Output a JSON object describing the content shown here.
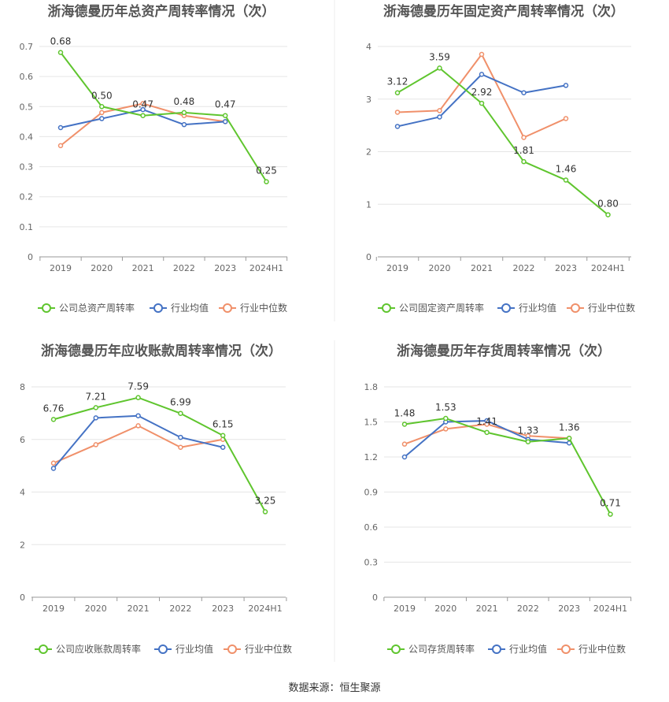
{
  "source": "数据来源：恒生聚源",
  "legend_swatch_color_note": "",
  "chart_data": [
    {
      "type": "line",
      "title": "浙海德曼历年总资产周转率情况（次）",
      "categories": [
        "2019",
        "2020",
        "2021",
        "2022",
        "2023",
        "2024H1"
      ],
      "ylim": [
        0,
        0.7
      ],
      "yticks": [
        "0",
        "0.1",
        "0.2",
        "0.3",
        "0.4",
        "0.5",
        "0.6",
        "0.7"
      ],
      "grid": true,
      "legend_position": "bottom",
      "series": [
        {
          "name": "公司总资产周转率",
          "color": "#5fc52e",
          "values": [
            0.68,
            0.5,
            0.47,
            0.48,
            0.47,
            0.25
          ],
          "labels": [
            "0.68",
            "0.50",
            "0.47",
            "0.48",
            "0.47",
            "0.25"
          ]
        },
        {
          "name": "行业均值",
          "color": "#4472c4",
          "values": [
            0.43,
            0.46,
            0.49,
            0.44,
            0.45,
            null
          ]
        },
        {
          "name": "行业中位数",
          "color": "#f0906a",
          "values": [
            0.37,
            0.48,
            0.51,
            0.47,
            0.45,
            null
          ]
        }
      ]
    },
    {
      "type": "line",
      "title": "浙海德曼历年固定资产周转率情况（次）",
      "categories": [
        "2019",
        "2020",
        "2021",
        "2022",
        "2023",
        "2024H1"
      ],
      "ylim": [
        0,
        4
      ],
      "yticks": [
        "0",
        "1",
        "2",
        "3",
        "4"
      ],
      "grid": true,
      "legend_position": "bottom",
      "series": [
        {
          "name": "公司固定资产周转率",
          "color": "#5fc52e",
          "values": [
            3.12,
            3.59,
            2.92,
            1.81,
            1.46,
            0.8
          ],
          "labels": [
            "3.12",
            "3.59",
            "2.92",
            "1.81",
            "1.46",
            "0.80"
          ]
        },
        {
          "name": "行业均值",
          "color": "#4472c4",
          "values": [
            2.48,
            2.66,
            3.47,
            3.12,
            3.26,
            null
          ]
        },
        {
          "name": "行业中位数",
          "color": "#f0906a",
          "values": [
            2.75,
            2.78,
            3.85,
            2.27,
            2.63,
            null
          ]
        }
      ]
    },
    {
      "type": "line",
      "title": "浙海德曼历年应收账款周转率情况（次）",
      "categories": [
        "2019",
        "2020",
        "2021",
        "2022",
        "2023",
        "2024H1"
      ],
      "ylim": [
        0,
        8
      ],
      "yticks": [
        "0",
        "2",
        "4",
        "6",
        "8"
      ],
      "grid": true,
      "legend_position": "bottom",
      "series": [
        {
          "name": "公司应收账款周转率",
          "color": "#5fc52e",
          "values": [
            6.76,
            7.21,
            7.59,
            6.99,
            6.15,
            3.25
          ],
          "labels": [
            "6.76",
            "7.21",
            "7.59",
            "6.99",
            "6.15",
            "3.25"
          ]
        },
        {
          "name": "行业均值",
          "color": "#4472c4",
          "values": [
            4.9,
            6.82,
            6.9,
            6.08,
            5.7,
            null
          ]
        },
        {
          "name": "行业中位数",
          "color": "#f0906a",
          "values": [
            5.1,
            5.8,
            6.52,
            5.7,
            6.0,
            null
          ]
        }
      ]
    },
    {
      "type": "line",
      "title": "浙海德曼历年存货周转率情况（次）",
      "categories": [
        "2019",
        "2020",
        "2021",
        "2022",
        "2023",
        "2024H1"
      ],
      "ylim": [
        0,
        1.8
      ],
      "yticks": [
        "0",
        "0.3",
        "0.6",
        "0.9",
        "1.2",
        "1.5",
        "1.8"
      ],
      "grid": true,
      "legend_position": "bottom",
      "series": [
        {
          "name": "公司存货周转率",
          "color": "#5fc52e",
          "values": [
            1.48,
            1.53,
            1.41,
            1.33,
            1.36,
            0.71
          ],
          "labels": [
            "1.48",
            "1.53",
            "1.41",
            "1.33",
            "1.36",
            "0.71"
          ]
        },
        {
          "name": "行业均值",
          "color": "#4472c4",
          "values": [
            1.2,
            1.5,
            1.51,
            1.35,
            1.32,
            null
          ]
        },
        {
          "name": "行业中位数",
          "color": "#f0906a",
          "values": [
            1.31,
            1.44,
            1.48,
            1.38,
            1.36,
            null
          ]
        }
      ]
    }
  ]
}
